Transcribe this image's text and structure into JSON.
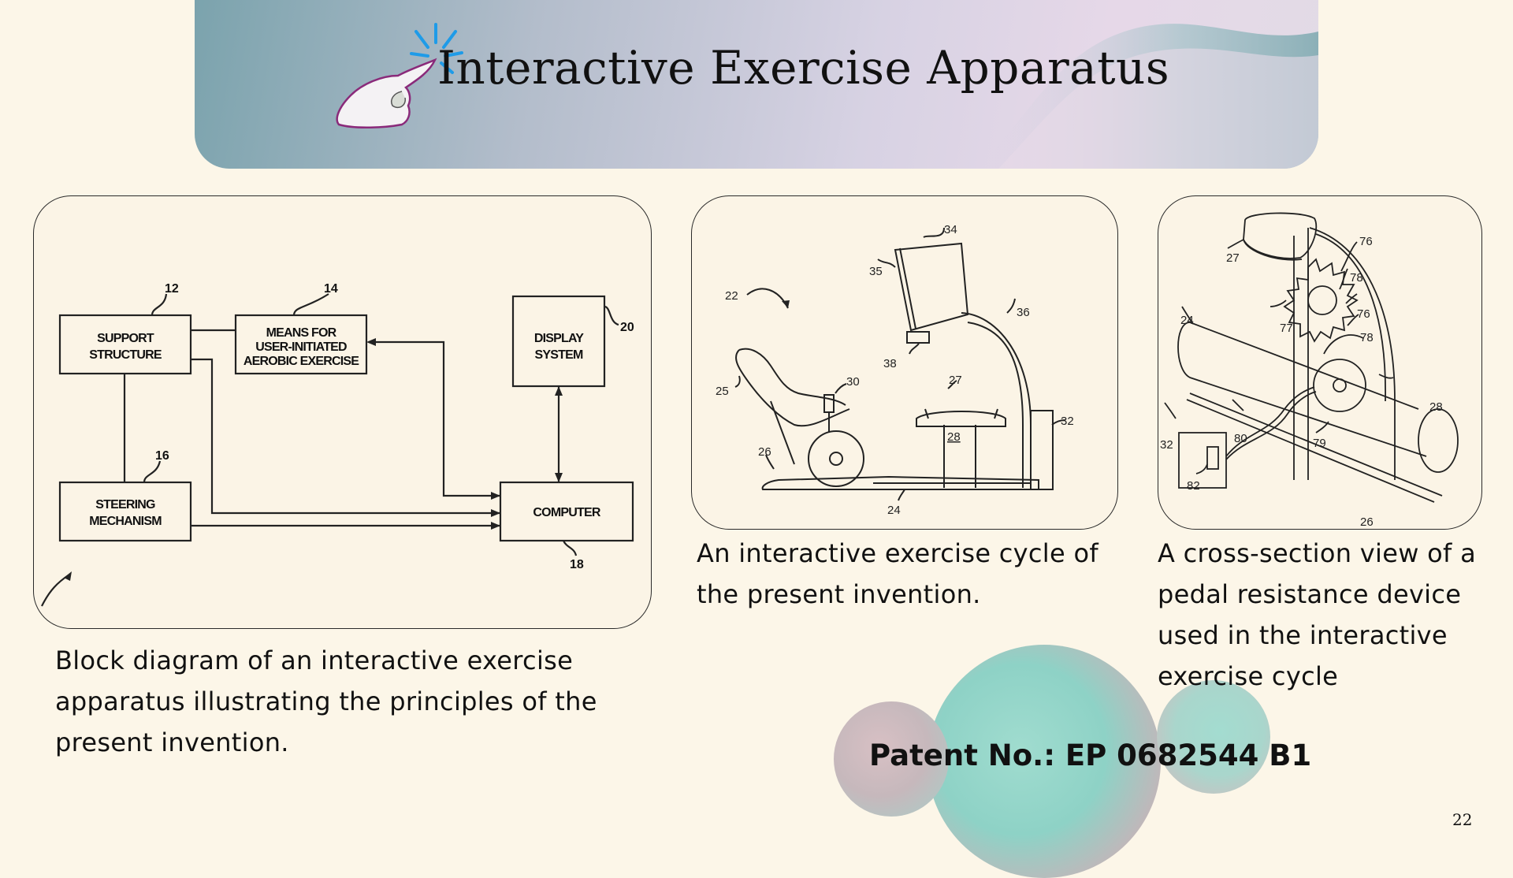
{
  "slide": {
    "title": "Interactive Exercise Apparatus",
    "page_number": "22",
    "patent_label": "Patent No.: EP 0682544 B1"
  },
  "figures": [
    {
      "caption_lines": [
        "Block diagram of an interactive exercise",
        "apparatus illustrating the principles of the",
        "present invention."
      ],
      "blocks": {
        "support": [
          "SUPPORT",
          "STRUCTURE"
        ],
        "means": [
          "MEANS FOR",
          "USER-INITIATED",
          "AEROBIC EXERCISE"
        ],
        "display": [
          "DISPLAY",
          "SYSTEM"
        ],
        "steering": [
          "STEERING",
          "MECHANISM"
        ],
        "computer": [
          "COMPUTER"
        ]
      },
      "refs": [
        "12",
        "14",
        "20",
        "16",
        "18"
      ]
    },
    {
      "caption_lines": [
        "An interactive exercise cycle of",
        "the present invention."
      ],
      "refs": [
        "34",
        "35",
        "22",
        "36",
        "38",
        "25",
        "30",
        "27",
        "32",
        "28",
        "26",
        "24"
      ]
    },
    {
      "caption_lines": [
        "A cross-section view of a",
        "pedal resistance device",
        "used in the interactive",
        "exercise cycle"
      ],
      "refs": [
        "76",
        "27",
        "78",
        "24",
        "77",
        "76",
        "78",
        "28",
        "32",
        "80",
        "79",
        "82",
        "26"
      ]
    }
  ],
  "icons": [
    "pointing-hand-icon"
  ],
  "colors": {
    "background": "#fcf6e8",
    "accent_blue": "#1e9be8",
    "teal": "#8fd3c5",
    "pink": "#f0aab2"
  }
}
